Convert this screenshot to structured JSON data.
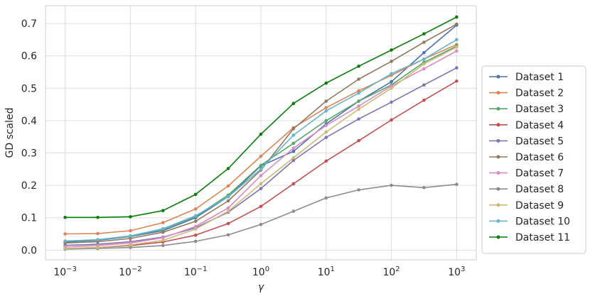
{
  "chart_data": {
    "type": "line",
    "xscale": "log",
    "x": [
      0.001,
      0.00316,
      0.01,
      0.0316,
      0.1,
      0.316,
      1,
      3.16,
      10,
      31.6,
      100,
      316,
      1000
    ],
    "xlim": [
      0.0005,
      2000
    ],
    "ylim": [
      -0.03,
      0.755
    ],
    "xlabel": "γ",
    "ylabel": "GD scaled",
    "grid": true,
    "legend_position": "right",
    "x_ticks": [
      {
        "value": 0.001,
        "base": "10",
        "exp": "−3"
      },
      {
        "value": 0.01,
        "base": "10",
        "exp": "−2"
      },
      {
        "value": 0.1,
        "base": "10",
        "exp": "−1"
      },
      {
        "value": 1,
        "base": "10",
        "exp": "0"
      },
      {
        "value": 10,
        "base": "10",
        "exp": "1"
      },
      {
        "value": 100,
        "base": "10",
        "exp": "2"
      },
      {
        "value": 1000,
        "base": "10",
        "exp": "3"
      }
    ],
    "y_ticks": [
      {
        "value": 0.0,
        "label": "0.0"
      },
      {
        "value": 0.1,
        "label": "0.1"
      },
      {
        "value": 0.2,
        "label": "0.2"
      },
      {
        "value": 0.3,
        "label": "0.3"
      },
      {
        "value": 0.4,
        "label": "0.4"
      },
      {
        "value": 0.5,
        "label": "0.5"
      },
      {
        "value": 0.6,
        "label": "0.6"
      },
      {
        "value": 0.7,
        "label": "0.7"
      }
    ],
    "series": [
      {
        "name": "Dataset 1",
        "color": "#4c72b0",
        "values": [
          0.025,
          0.03,
          0.042,
          0.06,
          0.1,
          0.165,
          0.26,
          0.305,
          0.39,
          0.46,
          0.52,
          0.61,
          0.695
        ]
      },
      {
        "name": "Dataset 2",
        "color": "#dd8452",
        "values": [
          0.05,
          0.051,
          0.06,
          0.085,
          0.127,
          0.198,
          0.29,
          0.378,
          0.44,
          0.492,
          0.54,
          0.59,
          0.635
        ]
      },
      {
        "name": "Dataset 3",
        "color": "#55a868",
        "values": [
          0.027,
          0.032,
          0.043,
          0.064,
          0.104,
          0.17,
          0.262,
          0.33,
          0.4,
          0.46,
          0.51,
          0.58,
          0.63
        ]
      },
      {
        "name": "Dataset 4",
        "color": "#c44e52",
        "values": [
          0.005,
          0.008,
          0.014,
          0.025,
          0.046,
          0.082,
          0.135,
          0.205,
          0.275,
          0.338,
          0.402,
          0.463,
          0.522
        ]
      },
      {
        "name": "Dataset 5",
        "color": "#8172b3",
        "values": [
          0.015,
          0.018,
          0.026,
          0.04,
          0.069,
          0.117,
          0.19,
          0.277,
          0.348,
          0.405,
          0.457,
          0.51,
          0.563
        ]
      },
      {
        "name": "Dataset 6",
        "color": "#937860",
        "values": [
          0.022,
          0.026,
          0.036,
          0.055,
          0.089,
          0.152,
          0.247,
          0.375,
          0.46,
          0.528,
          0.583,
          0.642,
          0.698
        ]
      },
      {
        "name": "Dataset 7",
        "color": "#da8bc3",
        "values": [
          0.01,
          0.014,
          0.022,
          0.038,
          0.073,
          0.13,
          0.23,
          0.315,
          0.385,
          0.445,
          0.507,
          0.56,
          0.615
        ]
      },
      {
        "name": "Dataset 8",
        "color": "#8c8c8c",
        "values": [
          0.003,
          0.005,
          0.008,
          0.014,
          0.027,
          0.047,
          0.079,
          0.12,
          0.161,
          0.186,
          0.2,
          0.193,
          0.203
        ]
      },
      {
        "name": "Dataset 9",
        "color": "#ccb974",
        "values": [
          0.005,
          0.008,
          0.016,
          0.03,
          0.065,
          0.12,
          0.205,
          0.285,
          0.365,
          0.435,
          0.5,
          0.575,
          0.627
        ]
      },
      {
        "name": "Dataset 10",
        "color": "#64b5cd",
        "values": [
          0.028,
          0.032,
          0.044,
          0.066,
          0.106,
          0.165,
          0.25,
          0.355,
          0.43,
          0.485,
          0.545,
          0.59,
          0.65
        ]
      },
      {
        "name": "Dataset 11",
        "color": "#0a7d0a",
        "values": [
          0.101,
          0.101,
          0.103,
          0.122,
          0.172,
          0.252,
          0.358,
          0.453,
          0.516,
          0.568,
          0.618,
          0.668,
          0.72
        ]
      }
    ]
  }
}
